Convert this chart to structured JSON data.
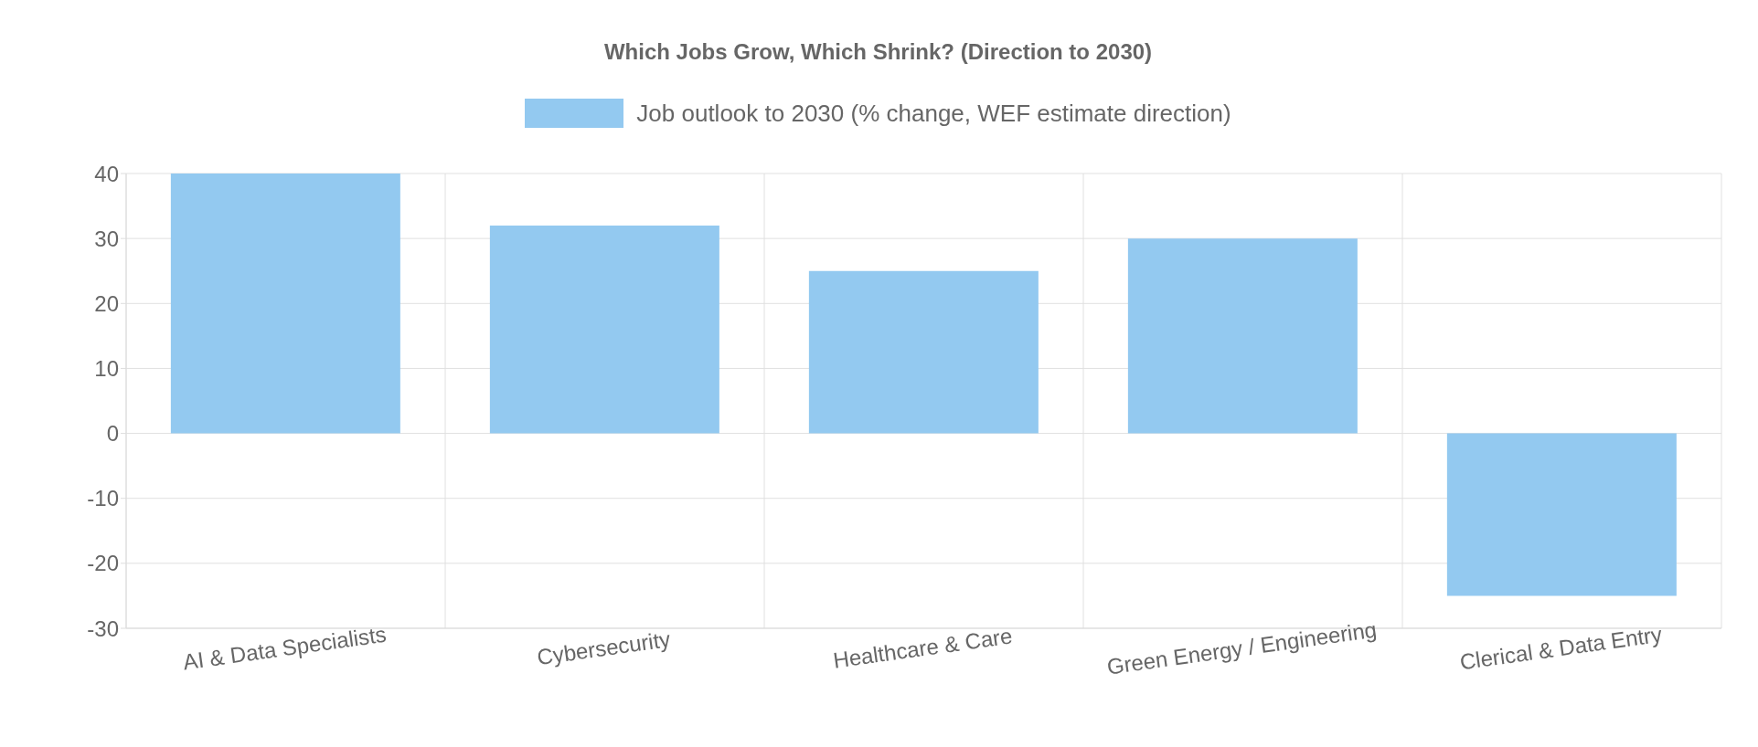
{
  "chart_data": {
    "type": "bar",
    "title": "Which Jobs Grow, Which Shrink? (Direction to 2030)",
    "categories": [
      "AI & Data Specialists",
      "Cybersecurity",
      "Healthcare & Care",
      "Green Energy / Engineering",
      "Clerical & Data Entry"
    ],
    "series": [
      {
        "name": "Job outlook to 2030 (% change, WEF estimate direction)",
        "color": "#93c9f0",
        "values": [
          40,
          32,
          25,
          30,
          -25
        ]
      }
    ],
    "ylim": [
      -30,
      40
    ],
    "yticks": [
      -30,
      -20,
      -10,
      0,
      10,
      20,
      30,
      40
    ],
    "grid": true,
    "legend": "top"
  }
}
